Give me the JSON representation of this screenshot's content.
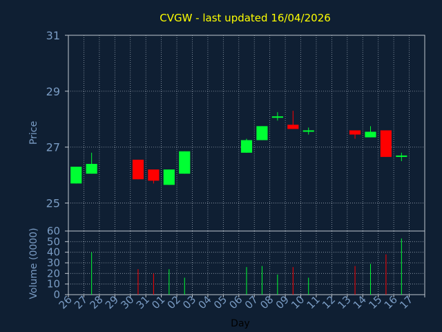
{
  "chart_data": {
    "type": "candlestick",
    "title": "CVGW - last updated 16/04/2026",
    "xlabel": "Day",
    "ylabel": "Price",
    "volume_label": "Volume (0000)",
    "price_ylim": [
      24,
      31
    ],
    "price_ticks": [
      "31",
      "29",
      "27",
      "25"
    ],
    "volume_ylim": [
      0,
      60
    ],
    "volume_ticks": [
      "60",
      "50",
      "40",
      "30",
      "20",
      "10",
      "0"
    ],
    "grid": true,
    "days": [
      "26",
      "27",
      "28",
      "29",
      "30",
      "31",
      "01",
      "02",
      "03",
      "04",
      "05",
      "06",
      "07",
      "08",
      "09",
      "10",
      "11",
      "12",
      "13",
      "14",
      "15",
      "16",
      "17"
    ],
    "candles": [
      {
        "day": "26",
        "open": 25.7,
        "high": 26.3,
        "low": 25.7,
        "close": 26.3,
        "volume": 0
      },
      {
        "day": "27",
        "open": 26.05,
        "high": 26.8,
        "low": 26.05,
        "close": 26.4,
        "volume": 40
      },
      {
        "day": "30",
        "open": 26.55,
        "high": 26.55,
        "low": 25.85,
        "close": 25.85,
        "volume": 24
      },
      {
        "day": "31",
        "open": 26.2,
        "high": 26.2,
        "low": 25.7,
        "close": 25.8,
        "volume": 20
      },
      {
        "day": "01",
        "open": 25.65,
        "high": 26.2,
        "low": 25.65,
        "close": 26.2,
        "volume": 24
      },
      {
        "day": "02",
        "open": 26.05,
        "high": 26.85,
        "low": 26.05,
        "close": 26.85,
        "volume": 16
      },
      {
        "day": "06",
        "open": 26.8,
        "high": 27.3,
        "low": 26.8,
        "close": 27.25,
        "volume": 26
      },
      {
        "day": "07",
        "open": 27.25,
        "high": 27.75,
        "low": 27.25,
        "close": 27.75,
        "volume": 27
      },
      {
        "day": "08",
        "open": 28.05,
        "high": 28.25,
        "low": 27.95,
        "close": 28.1,
        "volume": 19
      },
      {
        "day": "09",
        "open": 27.8,
        "high": 28.3,
        "low": 27.65,
        "close": 27.65,
        "volume": 26
      },
      {
        "day": "10",
        "open": 27.55,
        "high": 27.7,
        "low": 27.45,
        "close": 27.6,
        "volume": 16
      },
      {
        "day": "13",
        "open": 27.6,
        "high": 27.6,
        "low": 27.3,
        "close": 27.45,
        "volume": 27
      },
      {
        "day": "14",
        "open": 27.35,
        "high": 27.75,
        "low": 27.35,
        "close": 27.55,
        "volume": 29
      },
      {
        "day": "15",
        "open": 27.6,
        "high": 27.6,
        "low": 26.65,
        "close": 26.65,
        "volume": 38
      },
      {
        "day": "16",
        "open": 26.65,
        "high": 26.8,
        "low": 26.5,
        "close": 26.7,
        "volume": 53
      }
    ],
    "colors": {
      "up": "#00ff33",
      "down": "#ff0000",
      "title": "#ffff00",
      "axis_text": "#7a9cc4",
      "grid": "#9aa6b4",
      "frame": "#c0c8d0",
      "background": "#0f1f33"
    }
  }
}
